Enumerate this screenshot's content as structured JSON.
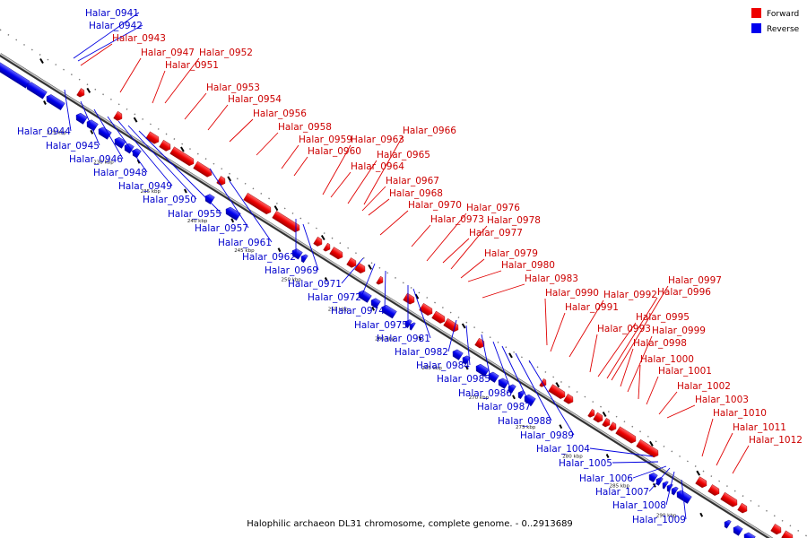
{
  "caption": "Halophilic archaeon DL31 chromosome, complete genome. - 0..2913689",
  "legend": {
    "forward": {
      "label": "Forward",
      "color": "#ee0000"
    },
    "reverse": {
      "label": "Reverse",
      "color": "#0000ee"
    }
  },
  "tick_labels": [
    "225 kbp",
    "230 kbp",
    "235 kbp",
    "240 kbp",
    "245 kbp",
    "250 kbp",
    "255 kbp",
    "260 kbp",
    "265 kbp",
    "270 kbp",
    "275 kbp",
    "280 kbp",
    "285 kbp",
    "290 kbp",
    "295 kbp"
  ],
  "forward_genes": [
    "Halar_0943",
    "Halar_0947",
    "Halar_0951",
    "Halar_0952",
    "Halar_0953",
    "Halar_0954",
    "Halar_0956",
    "Halar_0958",
    "Halar_0959",
    "Halar_0960",
    "Halar_0963",
    "Halar_0964",
    "Halar_0965",
    "Halar_0966",
    "Halar_0967",
    "Halar_0968",
    "Halar_0970",
    "Halar_0973",
    "Halar_0976",
    "Halar_0977",
    "Halar_0978",
    "Halar_0979",
    "Halar_0980",
    "Halar_0983",
    "Halar_0990",
    "Halar_0991",
    "Halar_0992",
    "Halar_0993",
    "Halar_0995",
    "Halar_0996",
    "Halar_0997",
    "Halar_0998",
    "Halar_0999",
    "Halar_1000",
    "Halar_1001",
    "Halar_1002",
    "Halar_1003",
    "Halar_1010",
    "Halar_1011",
    "Halar_1012"
  ],
  "reverse_genes": [
    "Halar_0941",
    "Halar_0942",
    "Halar_0944",
    "Halar_0945",
    "Halar_0946",
    "Halar_0948",
    "Halar_0949",
    "Halar_0950",
    "Halar_0955",
    "Halar_0957",
    "Halar_0961",
    "Halar_0962",
    "Halar_0969",
    "Halar_0971",
    "Halar_0972",
    "Halar_0974",
    "Halar_0975",
    "Halar_0981",
    "Halar_0982",
    "Halar_0984",
    "Halar_0985",
    "Halar_0986",
    "Halar_0987",
    "Halar_0988",
    "Halar_0989",
    "Halar_1004",
    "Halar_1005",
    "Halar_1006",
    "Halar_1007",
    "Halar_1008",
    "Halar_1009"
  ]
}
